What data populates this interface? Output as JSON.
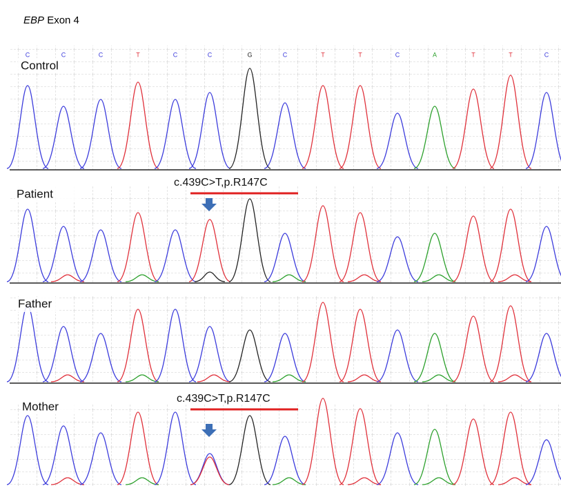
{
  "title": {
    "gene": "EBP",
    "label": "Exon 4"
  },
  "bases": [
    "C",
    "C",
    "C",
    "T",
    "C",
    "C",
    "G",
    "C",
    "T",
    "T",
    "C",
    "A",
    "T",
    "T",
    "C"
  ],
  "panels": [
    {
      "label": "Control"
    },
    {
      "label": "Patient",
      "annotation": "c.439C>T,p.R147C"
    },
    {
      "label": "Father"
    },
    {
      "label": "Mother",
      "annotation": "c.439C>T,p.R147C"
    }
  ]
}
